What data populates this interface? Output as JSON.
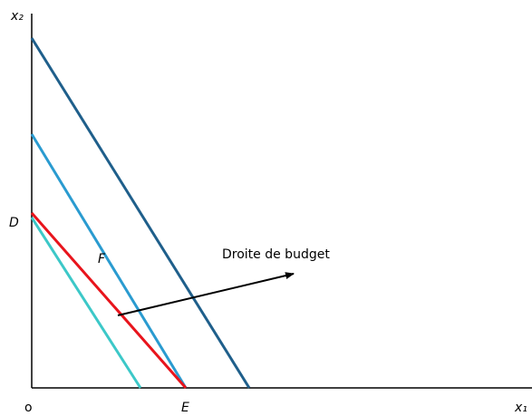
{
  "axes": {
    "y_label": "x₂",
    "x_label": "x₁",
    "origin": "o"
  },
  "points": [
    "D",
    "E",
    "F"
  ],
  "annotation": "Droite de budget"
}
